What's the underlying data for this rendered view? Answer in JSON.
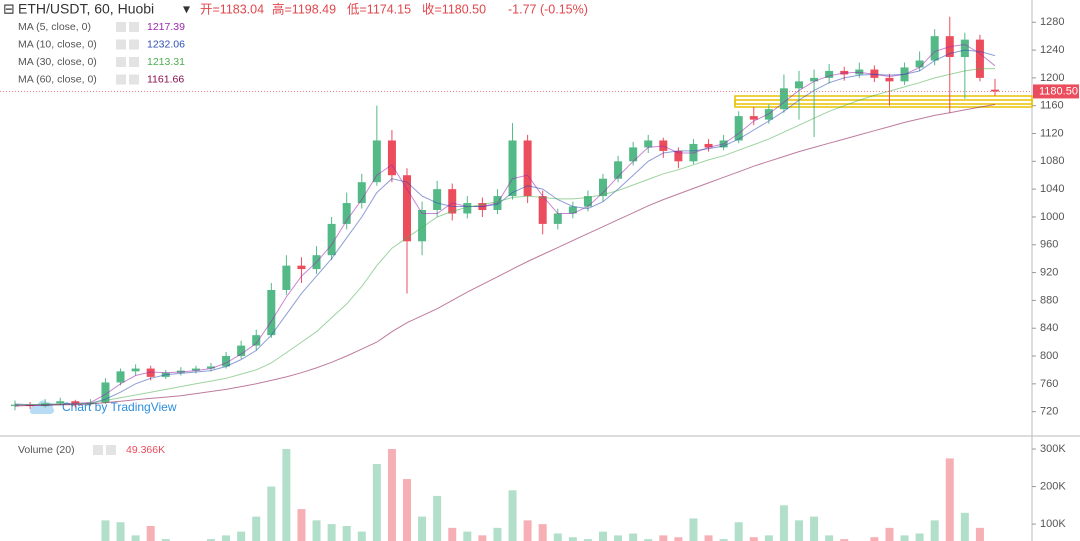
{
  "header": {
    "symbol": "ETH/USDT, 60, Huobi",
    "ohlc": [
      "开=1183.04",
      "高=1198.49",
      "低=1174.15",
      "收=1180.50"
    ],
    "change": "-1.77 (-0.15%)"
  },
  "watermark": "Chart by TradingView",
  "chart_data": [
    {
      "type": "candlestick",
      "up_color": "#53b987",
      "down_color": "#eb4d5c",
      "open": [
        728,
        730,
        728,
        732,
        735,
        731,
        733,
        762,
        778,
        782,
        770,
        776,
        779,
        782,
        785,
        800,
        815,
        830,
        895,
        930,
        925,
        945,
        990,
        1020,
        1050,
        1110,
        1060,
        965,
        1010,
        1040,
        1005,
        1020,
        1010,
        1030,
        1110,
        1030,
        990,
        1005,
        1015,
        1030,
        1055,
        1080,
        1100,
        1110,
        1095,
        1080,
        1105,
        1100,
        1110,
        1145,
        1140,
        1155,
        1185,
        1195,
        1200,
        1210,
        1205,
        1212,
        1200,
        1195,
        1215,
        1225,
        1260,
        1230,
        1255,
        1183.04
      ],
      "high": [
        736,
        734,
        738,
        740,
        737,
        738,
        768,
        782,
        788,
        786,
        780,
        784,
        786,
        790,
        806,
        822,
        838,
        905,
        945,
        942,
        958,
        1000,
        1035,
        1062,
        1160,
        1125,
        1070,
        1022,
        1052,
        1048,
        1030,
        1028,
        1040,
        1135,
        1118,
        1038,
        1012,
        1022,
        1038,
        1062,
        1088,
        1108,
        1118,
        1114,
        1100,
        1112,
        1112,
        1118,
        1152,
        1158,
        1162,
        1205,
        1210,
        1212,
        1220,
        1216,
        1222,
        1218,
        1206,
        1222,
        1238,
        1270,
        1288,
        1265,
        1262,
        1198.49
      ],
      "low": [
        722,
        724,
        726,
        729,
        726,
        728,
        731,
        758,
        772,
        765,
        767,
        772,
        775,
        778,
        782,
        796,
        808,
        826,
        888,
        905,
        918,
        938,
        982,
        1012,
        1045,
        1050,
        890,
        945,
        1000,
        995,
        998,
        1000,
        1004,
        1025,
        1020,
        975,
        982,
        998,
        1008,
        1022,
        1050,
        1074,
        1092,
        1085,
        1070,
        1076,
        1094,
        1096,
        1106,
        1132,
        1134,
        1150,
        1140,
        1115,
        1192,
        1196,
        1200,
        1194,
        1160,
        1190,
        1210,
        1218,
        1150,
        1170,
        1195,
        1174.15
      ],
      "close": [
        730,
        728,
        732,
        735,
        731,
        733,
        762,
        778,
        782,
        770,
        776,
        779,
        782,
        785,
        800,
        815,
        830,
        895,
        930,
        925,
        945,
        990,
        1020,
        1050,
        1110,
        1060,
        965,
        1010,
        1040,
        1005,
        1020,
        1010,
        1030,
        1110,
        1030,
        990,
        1005,
        1015,
        1030,
        1055,
        1080,
        1100,
        1110,
        1095,
        1080,
        1105,
        1100,
        1110,
        1145,
        1140,
        1155,
        1185,
        1195,
        1200,
        1210,
        1205,
        1212,
        1200,
        1195,
        1215,
        1225,
        1260,
        1230,
        1255,
        1200,
        1180.5
      ],
      "last_label": "1180.50",
      "series": [
        {
          "name": "MA (5, close, 0)",
          "color": "#9c27b0",
          "value_label": "1217.39",
          "values": [
            730,
            729,
            730,
            731,
            732,
            733,
            745,
            760,
            772,
            777,
            776,
            777,
            779,
            782,
            790,
            803,
            818,
            850,
            885,
            915,
            935,
            960,
            995,
            1025,
            1060,
            1075,
            1040,
            1005,
            1005,
            1020,
            1015,
            1015,
            1020,
            1055,
            1060,
            1030,
            1005,
            1005,
            1015,
            1035,
            1058,
            1080,
            1100,
            1102,
            1092,
            1092,
            1100,
            1105,
            1120,
            1138,
            1148,
            1165,
            1182,
            1195,
            1203,
            1207,
            1208,
            1205,
            1202,
            1205,
            1215,
            1238,
            1245,
            1248,
            1235,
            1217.39
          ]
        },
        {
          "name": "MA (10, close, 0)",
          "color": "#2f4fb5",
          "value_label": "1232.06",
          "values": [
            731,
            730,
            730,
            730,
            731,
            732,
            738,
            748,
            760,
            768,
            773,
            775,
            777,
            779,
            785,
            795,
            808,
            830,
            860,
            890,
            915,
            940,
            970,
            1000,
            1035,
            1055,
            1050,
            1030,
            1020,
            1015,
            1015,
            1015,
            1018,
            1035,
            1045,
            1040,
            1025,
            1015,
            1012,
            1022,
            1040,
            1060,
            1080,
            1092,
            1095,
            1095,
            1098,
            1102,
            1112,
            1125,
            1138,
            1152,
            1168,
            1182,
            1193,
            1200,
            1204,
            1205,
            1204,
            1205,
            1210,
            1225,
            1235,
            1240,
            1238,
            1232.06
          ]
        },
        {
          "name": "MA (30, close, 0)",
          "color": "#4caf50",
          "value_label": "1213.31",
          "values": [
            730,
            730,
            731,
            731,
            731,
            732,
            736,
            740,
            744,
            748,
            752,
            756,
            760,
            764,
            768,
            774,
            780,
            790,
            805,
            820,
            835,
            855,
            875,
            900,
            930,
            955,
            970,
            985,
            1000,
            1008,
            1014,
            1018,
            1022,
            1028,
            1030,
            1028,
            1026,
            1026,
            1028,
            1032,
            1038,
            1046,
            1054,
            1062,
            1068,
            1075,
            1082,
            1088,
            1096,
            1104,
            1112,
            1122,
            1132,
            1142,
            1152,
            1160,
            1168,
            1175,
            1181,
            1187,
            1193,
            1200,
            1205,
            1210,
            1213,
            1213.31
          ]
        },
        {
          "name": "MA (60, close, 0)",
          "color": "#880e4f",
          "value_label": "1161.66",
          "values": [
            728,
            729,
            729,
            730,
            730,
            731,
            733,
            735,
            737,
            739,
            741,
            743,
            746,
            749,
            752,
            756,
            760,
            765,
            770,
            776,
            783,
            791,
            800,
            810,
            820,
            835,
            848,
            858,
            868,
            880,
            892,
            903,
            914,
            925,
            936,
            946,
            956,
            966,
            976,
            986,
            996,
            1006,
            1016,
            1025,
            1033,
            1041,
            1049,
            1057,
            1065,
            1073,
            1080,
            1087,
            1094,
            1100,
            1106,
            1112,
            1118,
            1124,
            1130,
            1136,
            1141,
            1146,
            1150,
            1154,
            1158,
            1161.66
          ]
        }
      ],
      "ylim": [
        685,
        1312
      ],
      "yticks": [
        720,
        760,
        800,
        840,
        880,
        920,
        960,
        1000,
        1040,
        1080,
        1120,
        1160,
        1200,
        1240,
        1280
      ],
      "grid": false
    },
    {
      "type": "bar",
      "name": "Volume (20)",
      "last_label": "49.366K",
      "values": [
        40000,
        35000,
        30000,
        35000,
        30000,
        45000,
        110000,
        105000,
        70000,
        95000,
        60000,
        55000,
        50000,
        60000,
        70000,
        80000,
        120000,
        200000,
        300000,
        140000,
        110000,
        100000,
        95000,
        80000,
        260000,
        300000,
        220000,
        120000,
        175000,
        90000,
        80000,
        70000,
        90000,
        190000,
        110000,
        100000,
        75000,
        65000,
        60000,
        80000,
        70000,
        75000,
        60000,
        70000,
        65000,
        115000,
        70000,
        60000,
        105000,
        65000,
        70000,
        150000,
        110000,
        120000,
        70000,
        60000,
        55000,
        65000,
        90000,
        70000,
        75000,
        110000,
        275000,
        130000,
        90000,
        49366
      ],
      "ylim": [
        55000,
        332000
      ],
      "yticks": [
        {
          "value": 100000,
          "label": "100K"
        },
        {
          "value": 200000,
          "label": "200K"
        },
        {
          "value": 300000,
          "label": "300K"
        }
      ]
    }
  ]
}
